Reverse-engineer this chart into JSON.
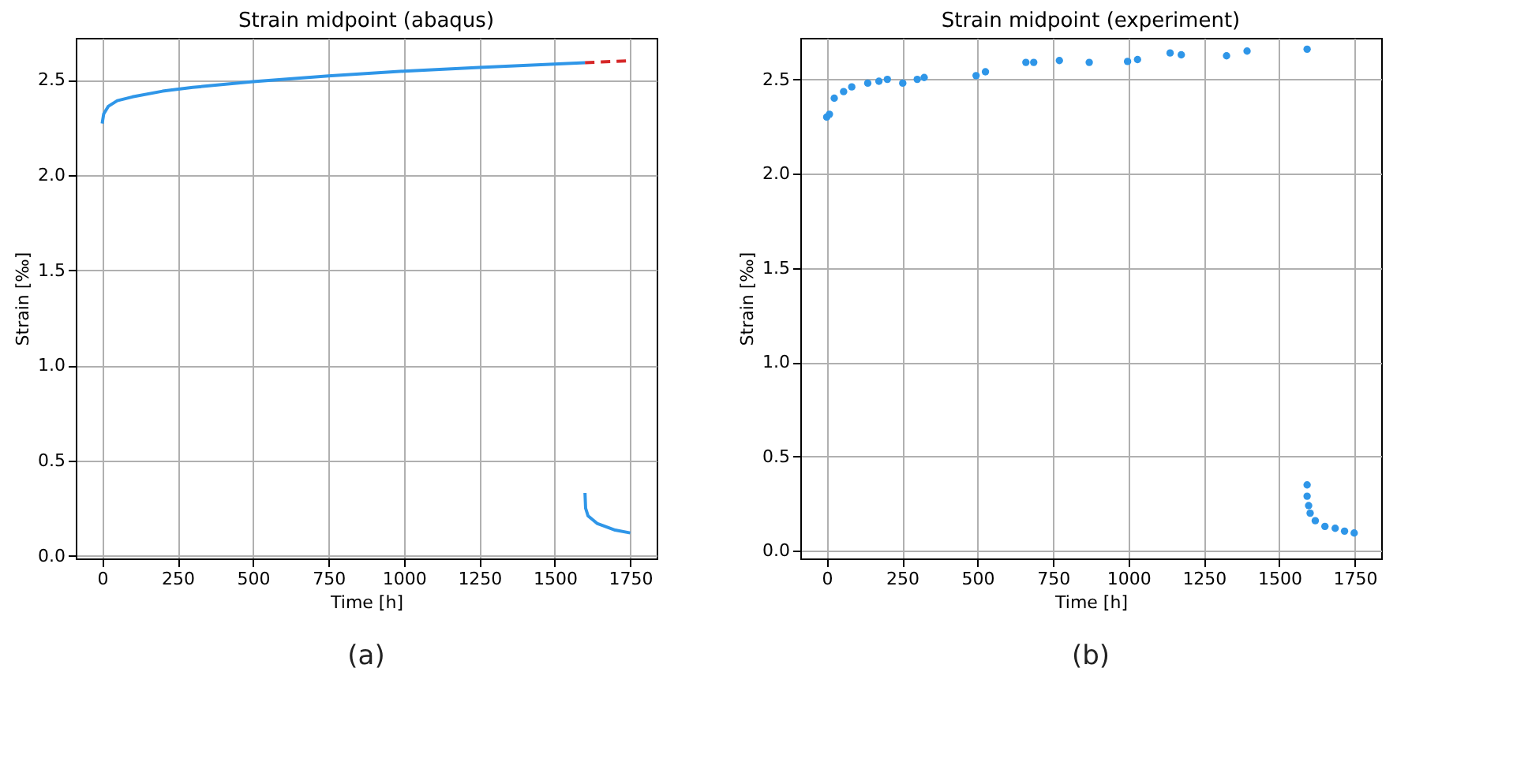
{
  "chart_data": [
    {
      "type": "line",
      "title": "Strain midpoint (abaqus)",
      "xlabel": "Time [h]",
      "ylabel": "Strain [‰]",
      "annotations": [
        "(a)"
      ],
      "grid": true,
      "marker": "none",
      "xlim": [
        -87.5,
        1837.5
      ],
      "xticks": [
        0,
        250,
        500,
        750,
        1000,
        1250,
        1500,
        1750
      ],
      "ylim": [
        -0.014,
        2.72
      ],
      "yticks": [
        {
          "value": 0,
          "label": "0.0"
        },
        0.5,
        {
          "value": 1,
          "label": "1.0"
        },
        1.5,
        {
          "value": 2,
          "label": "2.0"
        },
        2.5
      ],
      "series": [
        {
          "color": "#2f96e8",
          "line_style": "solid",
          "x": [
            0,
            5,
            20,
            50,
            100,
            200,
            300,
            500,
            750,
            1000,
            1250,
            1600
          ],
          "values": [
            2.27,
            2.32,
            2.36,
            2.39,
            2.41,
            2.44,
            2.46,
            2.49,
            2.52,
            2.545,
            2.565,
            2.59
          ]
        },
        {
          "color": "#d62728",
          "line_style": "dashed",
          "x": [
            1600,
            1750
          ],
          "values": [
            2.59,
            2.6
          ]
        },
        {
          "color": "#2f96e8",
          "line_style": "solid",
          "x": [
            1600,
            1602,
            1610,
            1640,
            1700,
            1750
          ],
          "values": [
            0.33,
            0.25,
            0.21,
            0.17,
            0.135,
            0.12
          ]
        }
      ]
    },
    {
      "type": "scatter",
      "title": "Strain midpoint (experiment)",
      "xlabel": "Time [h]",
      "ylabel": "Strain [‰]",
      "annotations": [
        "(b)"
      ],
      "grid": true,
      "marker": "circle",
      "xlim": [
        -87.5,
        1837.5
      ],
      "xticks": [
        0,
        250,
        500,
        750,
        1000,
        1250,
        1500,
        1750
      ],
      "ylim": [
        -0.04,
        2.72
      ],
      "yticks": [
        {
          "value": 0,
          "label": "0.0"
        },
        0.5,
        {
          "value": 1,
          "label": "1.0"
        },
        1.5,
        {
          "value": 2,
          "label": "2.0"
        },
        2.5
      ],
      "series": [
        {
          "color": "#2f96e8",
          "x": [
            0,
            9,
            25,
            56,
            83,
            136,
            173,
            201,
            252,
            300,
            323,
            495,
            526,
            660,
            686,
            771,
            870,
            997,
            1030,
            1138,
            1175,
            1325,
            1393,
            1592,
            1592,
            1592,
            1597,
            1602,
            1619,
            1651,
            1685,
            1716,
            1748
          ],
          "values": [
            2.3,
            2.315,
            2.4,
            2.435,
            2.46,
            2.48,
            2.49,
            2.5,
            2.48,
            2.5,
            2.51,
            2.52,
            2.54,
            2.59,
            2.59,
            2.6,
            2.59,
            2.595,
            2.605,
            2.64,
            2.63,
            2.625,
            2.65,
            2.66,
            0.35,
            0.29,
            0.24,
            0.2,
            0.16,
            0.13,
            0.12,
            0.105,
            0.095
          ]
        }
      ]
    }
  ]
}
